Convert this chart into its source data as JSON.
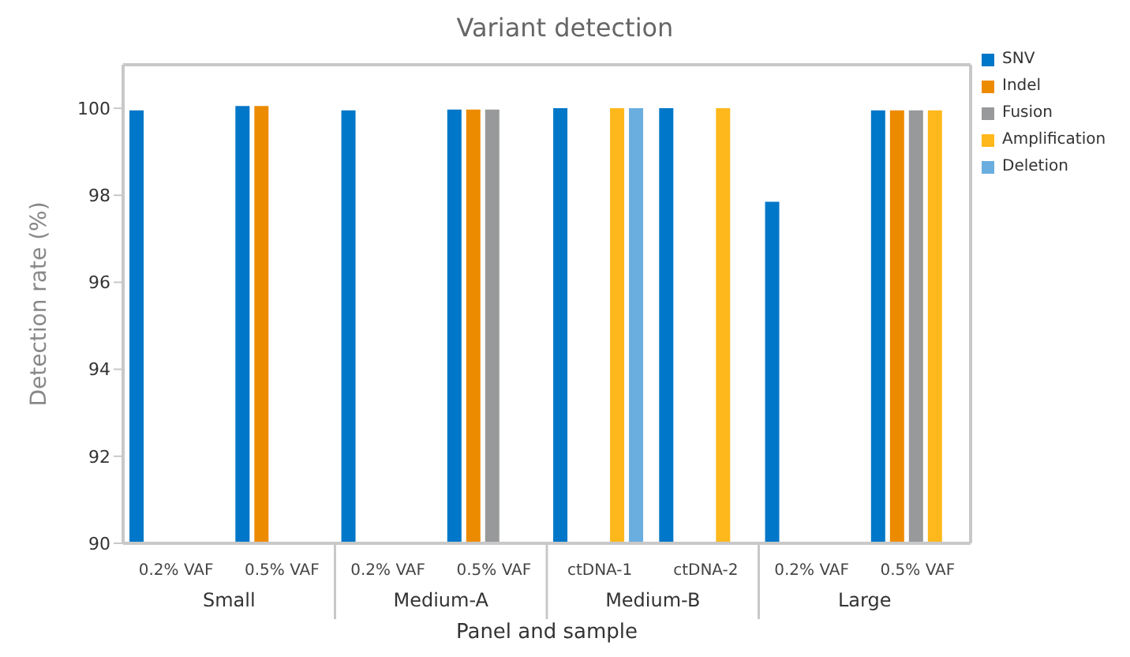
{
  "chart_data": {
    "type": "bar",
    "title": "Variant detection",
    "xlabel": "Panel and sample",
    "ylabel": "Detection rate (%)",
    "categories": [
      "0.2% VAF",
      "0.5% VAF",
      "0.2% VAF",
      "0.5% VAF",
      "ctDNA-1",
      "ctDNA-2",
      "0.2% VAF",
      "0.5% VAF"
    ],
    "annotations": [
      "Small",
      "Medium-A",
      "Medium-B",
      "Large"
    ],
    "series": [
      {
        "name": "SNV",
        "color": "#0077c8",
        "values": [
          99.95,
          100.05,
          99.95,
          99.97,
          100.0,
          100.0,
          97.85,
          99.95
        ]
      },
      {
        "name": "Indel",
        "color": "#ed8b00",
        "values": [
          null,
          100.05,
          null,
          99.97,
          null,
          null,
          null,
          99.95
        ]
      },
      {
        "name": "Fusion",
        "color": "#97999b",
        "values": [
          null,
          null,
          null,
          99.97,
          null,
          null,
          null,
          99.95
        ]
      },
      {
        "name": "Amplification",
        "color": "#ffb81c",
        "values": [
          null,
          null,
          null,
          null,
          100.0,
          100.0,
          null,
          99.95
        ]
      },
      {
        "name": "Deletion",
        "color": "#6aaddf",
        "values": [
          null,
          null,
          null,
          null,
          100.0,
          null,
          null,
          null
        ]
      }
    ],
    "ylim": [
      90,
      101
    ],
    "yticks": [
      90,
      92,
      94,
      96,
      98,
      100
    ],
    "legend": "right"
  }
}
